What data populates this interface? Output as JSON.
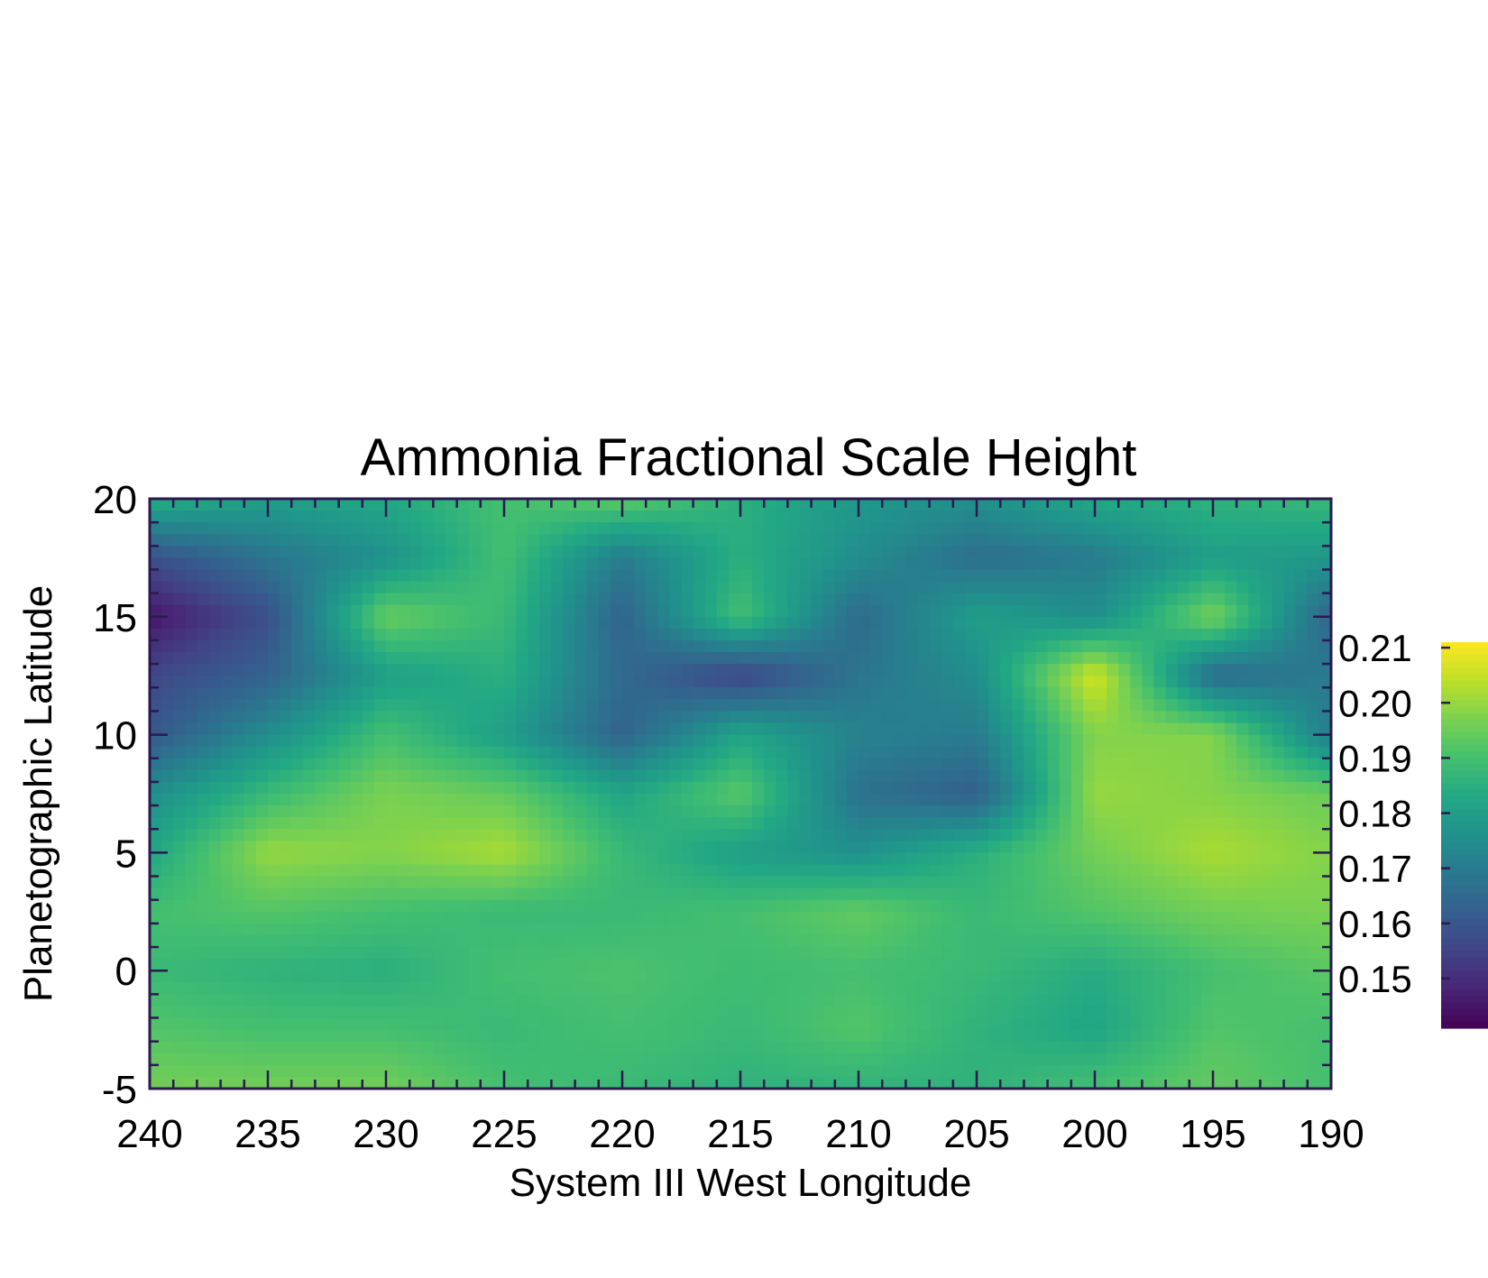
{
  "chart_data": {
    "type": "heatmap",
    "title": "Ammonia Fractional Scale Height",
    "xlabel": "System III West Longitude",
    "ylabel": "Planetographic Latitude",
    "xlim": [
      240,
      190
    ],
    "ylim": [
      -5,
      20
    ],
    "x_ticks": [
      240,
      235,
      230,
      225,
      220,
      215,
      210,
      205,
      200,
      195,
      190
    ],
    "x_tick_labels": [
      "240",
      "235",
      "230",
      "225",
      "220",
      "215",
      "210",
      "205",
      "200",
      "195",
      "190"
    ],
    "y_ticks": [
      -5,
      0,
      5,
      10,
      15,
      20
    ],
    "y_tick_labels": [
      "-5",
      "0",
      "5",
      "10",
      "15",
      "20"
    ],
    "colorbar": {
      "min": 0.141,
      "max": 0.211,
      "ticks": [
        0.15,
        0.16,
        0.17,
        0.18,
        0.19,
        0.2,
        0.21
      ],
      "tick_labels": [
        "0.15",
        "0.16",
        "0.17",
        "0.18",
        "0.19",
        "0.20",
        "0.21"
      ],
      "colormap": "viridis",
      "placement": "right"
    },
    "grid": false,
    "x_grid_values": [
      240,
      235,
      230,
      225,
      220,
      215,
      210,
      205,
      200,
      195,
      190
    ],
    "y_grid_values": [
      20,
      17.5,
      15,
      12.5,
      10,
      7.5,
      5,
      2.5,
      0,
      -2.5,
      -5
    ],
    "z_values": [
      [
        0.185,
        0.18,
        0.183,
        0.19,
        0.194,
        0.185,
        0.178,
        0.176,
        0.183,
        0.186,
        0.188
      ],
      [
        0.158,
        0.168,
        0.176,
        0.19,
        0.17,
        0.185,
        0.175,
        0.166,
        0.17,
        0.18,
        0.178
      ],
      [
        0.145,
        0.158,
        0.195,
        0.188,
        0.163,
        0.19,
        0.165,
        0.18,
        0.175,
        0.197,
        0.163
      ],
      [
        0.156,
        0.163,
        0.18,
        0.185,
        0.165,
        0.155,
        0.168,
        0.175,
        0.207,
        0.165,
        0.17
      ],
      [
        0.16,
        0.175,
        0.19,
        0.18,
        0.163,
        0.182,
        0.172,
        0.17,
        0.198,
        0.198,
        0.17
      ],
      [
        0.175,
        0.188,
        0.197,
        0.194,
        0.182,
        0.193,
        0.167,
        0.162,
        0.2,
        0.198,
        0.195
      ],
      [
        0.182,
        0.2,
        0.198,
        0.202,
        0.188,
        0.18,
        0.176,
        0.185,
        0.196,
        0.202,
        0.198
      ],
      [
        0.19,
        0.192,
        0.19,
        0.188,
        0.188,
        0.19,
        0.194,
        0.188,
        0.192,
        0.196,
        0.197
      ],
      [
        0.188,
        0.186,
        0.185,
        0.19,
        0.191,
        0.189,
        0.19,
        0.188,
        0.184,
        0.19,
        0.193
      ],
      [
        0.192,
        0.19,
        0.19,
        0.188,
        0.19,
        0.188,
        0.192,
        0.186,
        0.182,
        0.192,
        0.19
      ],
      [
        0.196,
        0.196,
        0.196,
        0.19,
        0.188,
        0.186,
        0.186,
        0.186,
        0.19,
        0.194,
        0.19
      ]
    ]
  }
}
